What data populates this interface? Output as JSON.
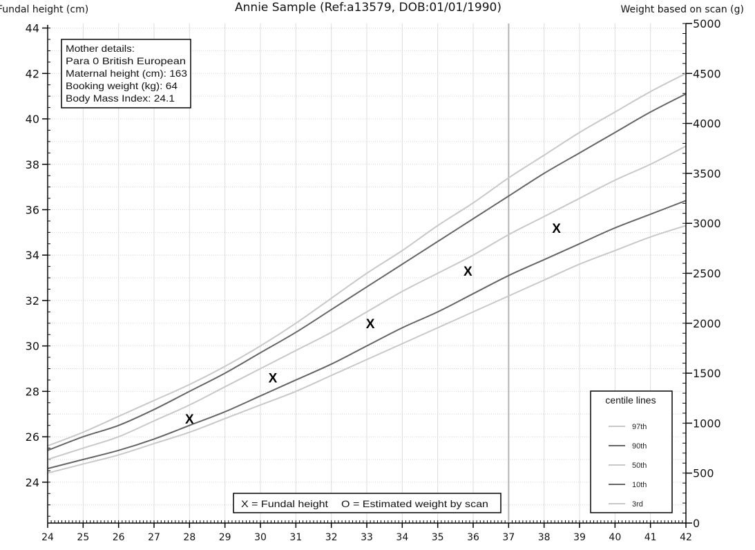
{
  "title": "Annie Sample (Ref:a13579, DOB:01/01/1990)",
  "chart_data": {
    "type": "line",
    "left_axis_label": "Fundal height (cm)",
    "right_axis_label": "Weight based on scan (g)",
    "xlim": [
      24,
      42
    ],
    "ylim_left": [
      22.2,
      44.2
    ],
    "ylim_right": [
      0,
      5000
    ],
    "x_ticks": [
      24,
      25,
      26,
      27,
      28,
      29,
      30,
      31,
      32,
      33,
      34,
      35,
      36,
      37,
      38,
      39,
      40,
      41,
      42
    ],
    "y_left_ticks": [
      24,
      26,
      28,
      30,
      32,
      34,
      36,
      38,
      40,
      42,
      44
    ],
    "y_right_ticks": [
      0,
      500,
      1000,
      1500,
      2000,
      2500,
      3000,
      3500,
      4000,
      4500,
      5000
    ],
    "marker_line_x": 37,
    "x": [
      24,
      25,
      26,
      27,
      28,
      29,
      30,
      31,
      32,
      33,
      34,
      35,
      36,
      37,
      38,
      39,
      40,
      41,
      42
    ],
    "series": [
      {
        "name": "97th",
        "color": "#c8c8c8",
        "values": [
          25.6,
          26.2,
          26.9,
          27.6,
          28.3,
          29.1,
          30.0,
          31.0,
          32.1,
          33.2,
          34.2,
          35.3,
          36.3,
          37.4,
          38.4,
          39.4,
          40.3,
          41.2,
          42.0
        ]
      },
      {
        "name": "90th",
        "color": "#646464",
        "values": [
          25.4,
          26.0,
          26.5,
          27.2,
          28.0,
          28.8,
          29.7,
          30.6,
          31.6,
          32.6,
          33.6,
          34.6,
          35.6,
          36.6,
          37.6,
          38.5,
          39.4,
          40.3,
          41.1
        ]
      },
      {
        "name": "50th",
        "color": "#c8c8c8",
        "values": [
          25.0,
          25.5,
          26.0,
          26.7,
          27.4,
          28.2,
          29.0,
          29.8,
          30.6,
          31.5,
          32.4,
          33.2,
          34.0,
          34.9,
          35.7,
          36.5,
          37.3,
          38.0,
          38.8
        ]
      },
      {
        "name": "10th",
        "color": "#646464",
        "values": [
          24.6,
          25.0,
          25.4,
          25.9,
          26.5,
          27.1,
          27.8,
          28.5,
          29.2,
          30.0,
          30.8,
          31.5,
          32.3,
          33.1,
          33.8,
          34.5,
          35.2,
          35.8,
          36.4
        ]
      },
      {
        "name": "3rd",
        "color": "#c8c8c8",
        "values": [
          24.4,
          24.8,
          25.2,
          25.7,
          26.2,
          26.8,
          27.4,
          28.0,
          28.7,
          29.4,
          30.1,
          30.8,
          31.5,
          32.2,
          32.9,
          33.6,
          34.2,
          34.8,
          35.3
        ]
      }
    ],
    "fundal_points": [
      {
        "x": 28.0,
        "y": 26.8
      },
      {
        "x": 30.35,
        "y": 28.6
      },
      {
        "x": 33.1,
        "y": 31.0
      },
      {
        "x": 35.85,
        "y": 33.3
      },
      {
        "x": 38.35,
        "y": 35.2
      }
    ],
    "point_symbol": "X",
    "legend": {
      "title": "centile lines",
      "entries": [
        "97th",
        "90th",
        "50th",
        "10th",
        "3rd"
      ]
    }
  },
  "mother_details": {
    "heading": "Mother details:",
    "lines": [
      "Para 0  British European",
      "Maternal height (cm): 163",
      "Booking weight (kg): 64",
      "Body Mass Index: 24.1"
    ]
  },
  "key": {
    "fundal": "X = Fundal height",
    "scan": "O = Estimated weight by scan"
  }
}
